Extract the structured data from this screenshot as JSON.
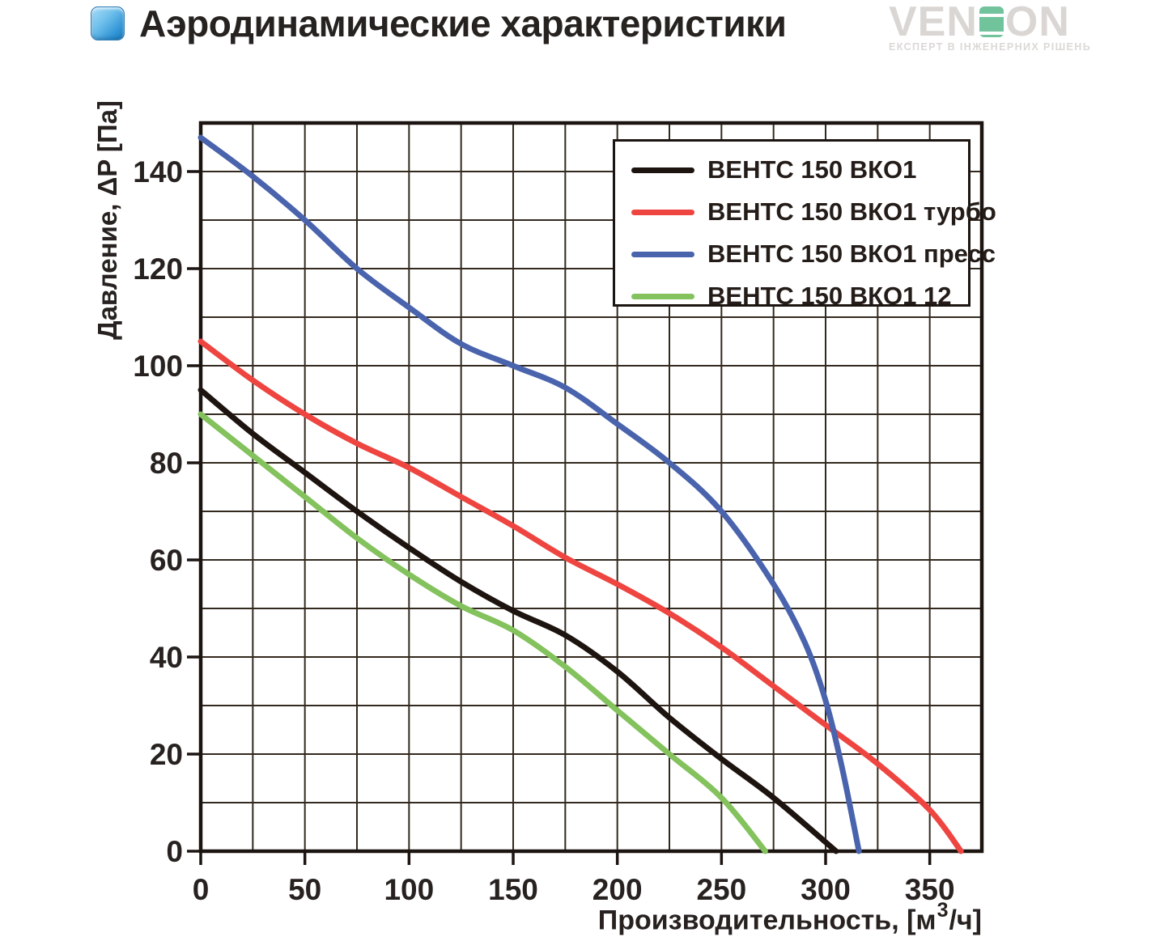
{
  "header": {
    "title": "Аэродинамические характеристики"
  },
  "watermark": {
    "brand_prefix": "VEN",
    "brand_suffix": "ON",
    "tagline": "ЕКСПЕРТ В ІНЖЕНЕРНИХ РІШЕНЬ"
  },
  "chart_data": {
    "type": "line",
    "title": "Аэродинамические характеристики",
    "xlabel_prefix": "Производительность, [м",
    "xlabel_sup": "3",
    "xlabel_suffix": "/ч]",
    "ylabel": "Давление, ΔP [Па]",
    "grid": true,
    "legend_position": "top-right",
    "x_axis": {
      "min": 0,
      "max": 375,
      "grid_step": 25,
      "label_step": 50,
      "tick_labels": [
        "0",
        "50",
        "100",
        "150",
        "200",
        "250",
        "300",
        "350"
      ]
    },
    "y_axis": {
      "min": 0,
      "max": 150,
      "grid_step": 10,
      "label_step": 20,
      "tick_labels": [
        "0",
        "20",
        "40",
        "60",
        "80",
        "100",
        "120",
        "140"
      ]
    },
    "series": [
      {
        "name": "ВЕНТС 150 ВКО1",
        "color": "#1d1410",
        "points": [
          [
            0,
            95
          ],
          [
            25,
            86
          ],
          [
            50,
            78
          ],
          [
            75,
            70
          ],
          [
            100,
            62.5
          ],
          [
            125,
            55.5
          ],
          [
            150,
            49.5
          ],
          [
            175,
            44.5
          ],
          [
            200,
            37
          ],
          [
            225,
            27.5
          ],
          [
            250,
            19
          ],
          [
            275,
            11
          ],
          [
            305,
            0
          ]
        ]
      },
      {
        "name": "ВЕНТС 150 ВКО1 турбо",
        "color": "#ee4540",
        "points": [
          [
            0,
            105
          ],
          [
            25,
            97
          ],
          [
            50,
            90
          ],
          [
            75,
            84
          ],
          [
            100,
            79
          ],
          [
            125,
            73
          ],
          [
            150,
            67
          ],
          [
            175,
            60.5
          ],
          [
            200,
            55
          ],
          [
            225,
            49
          ],
          [
            250,
            42
          ],
          [
            275,
            34
          ],
          [
            300,
            26
          ],
          [
            325,
            18
          ],
          [
            350,
            8.5
          ],
          [
            365,
            0
          ]
        ]
      },
      {
        "name": "ВЕНТС 150 ВКО1 пресс",
        "color": "#4a63ad",
        "points": [
          [
            0,
            147
          ],
          [
            25,
            139
          ],
          [
            50,
            130
          ],
          [
            75,
            120
          ],
          [
            100,
            112
          ],
          [
            125,
            104.5
          ],
          [
            150,
            100
          ],
          [
            175,
            95.5
          ],
          [
            200,
            88
          ],
          [
            225,
            80
          ],
          [
            250,
            70
          ],
          [
            275,
            55
          ],
          [
            290,
            43
          ],
          [
            300,
            31
          ],
          [
            308,
            17
          ],
          [
            316,
            0
          ]
        ]
      },
      {
        "name": "ВЕНТС 150 ВКО1 12",
        "color": "#83c25c",
        "points": [
          [
            0,
            90
          ],
          [
            25,
            81.5
          ],
          [
            50,
            73
          ],
          [
            75,
            64.5
          ],
          [
            100,
            57
          ],
          [
            125,
            50.5
          ],
          [
            150,
            45.5
          ],
          [
            175,
            38
          ],
          [
            200,
            29
          ],
          [
            225,
            20
          ],
          [
            250,
            11
          ],
          [
            271,
            0
          ]
        ]
      }
    ],
    "style": {
      "grid_color": "#33291e",
      "axis_color": "#1b1410",
      "text_color": "#272220"
    }
  }
}
